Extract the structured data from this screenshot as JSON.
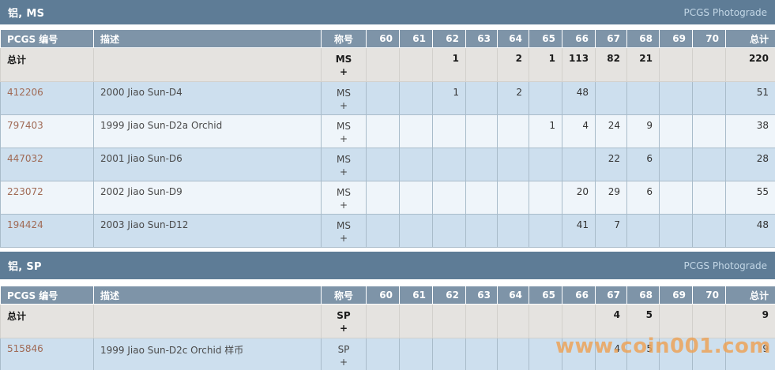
{
  "photograde_label": "PCGS Photograde",
  "watermark": "www.coin001.com",
  "colors": {
    "title_bar": "#5e7c96",
    "header_row": "#7e94a8",
    "row_blue": "#cddfee",
    "row_light": "#eff5fa",
    "total_row_bg": "#e5e3e0",
    "pcgs_link": "#a06a55",
    "watermark_orange": "#eca358"
  },
  "columns": [
    "PCGS 编号",
    "描述",
    "称号",
    "60",
    "61",
    "62",
    "63",
    "64",
    "65",
    "66",
    "67",
    "68",
    "69",
    "70",
    "总计"
  ],
  "tables": [
    {
      "title": "铝, MS",
      "total_row": {
        "label": "总计",
        "designation": [
          "MS",
          "+"
        ],
        "grades": [
          "",
          "",
          "1",
          "",
          "2",
          "1",
          "113",
          "82",
          "21",
          "",
          ""
        ],
        "total": "220"
      },
      "rows": [
        {
          "pcgs_no": "412206",
          "description": "2000 Jiao Sun-D4",
          "designation": [
            "MS",
            "+"
          ],
          "grades": [
            "",
            "",
            "1",
            "",
            "2",
            "",
            "48",
            "",
            "",
            "",
            ""
          ],
          "total": "51"
        },
        {
          "pcgs_no": "797403",
          "description": "1999 Jiao Sun-D2a Orchid",
          "designation": [
            "MS",
            "+"
          ],
          "grades": [
            "",
            "",
            "",
            "",
            "",
            "1",
            "4",
            "24",
            "9",
            "",
            ""
          ],
          "total": "38"
        },
        {
          "pcgs_no": "447032",
          "description": "2001 Jiao Sun-D6",
          "designation": [
            "MS",
            "+"
          ],
          "grades": [
            "",
            "",
            "",
            "",
            "",
            "",
            "",
            "22",
            "6",
            "",
            ""
          ],
          "total": "28"
        },
        {
          "pcgs_no": "223072",
          "description": "2002 Jiao Sun-D9",
          "designation": [
            "MS",
            "+"
          ],
          "grades": [
            "",
            "",
            "",
            "",
            "",
            "",
            "20",
            "29",
            "6",
            "",
            ""
          ],
          "total": "55"
        },
        {
          "pcgs_no": "194424",
          "description": "2003 Jiao Sun-D12",
          "designation": [
            "MS",
            "+"
          ],
          "grades": [
            "",
            "",
            "",
            "",
            "",
            "",
            "41",
            "7",
            "",
            "",
            ""
          ],
          "total": "48"
        }
      ]
    },
    {
      "title": "铝, SP",
      "total_row": {
        "label": "总计",
        "designation": [
          "SP",
          "+"
        ],
        "grades": [
          "",
          "",
          "",
          "",
          "",
          "",
          "",
          "4",
          "5",
          "",
          ""
        ],
        "total": "9"
      },
      "rows": [
        {
          "pcgs_no": "515846",
          "description": "1999 Jiao Sun-D2c Orchid 样币",
          "designation": [
            "SP",
            "+"
          ],
          "grades": [
            "",
            "",
            "",
            "",
            "",
            "",
            "",
            "4",
            "5",
            "",
            ""
          ],
          "total": "9"
        }
      ]
    }
  ]
}
